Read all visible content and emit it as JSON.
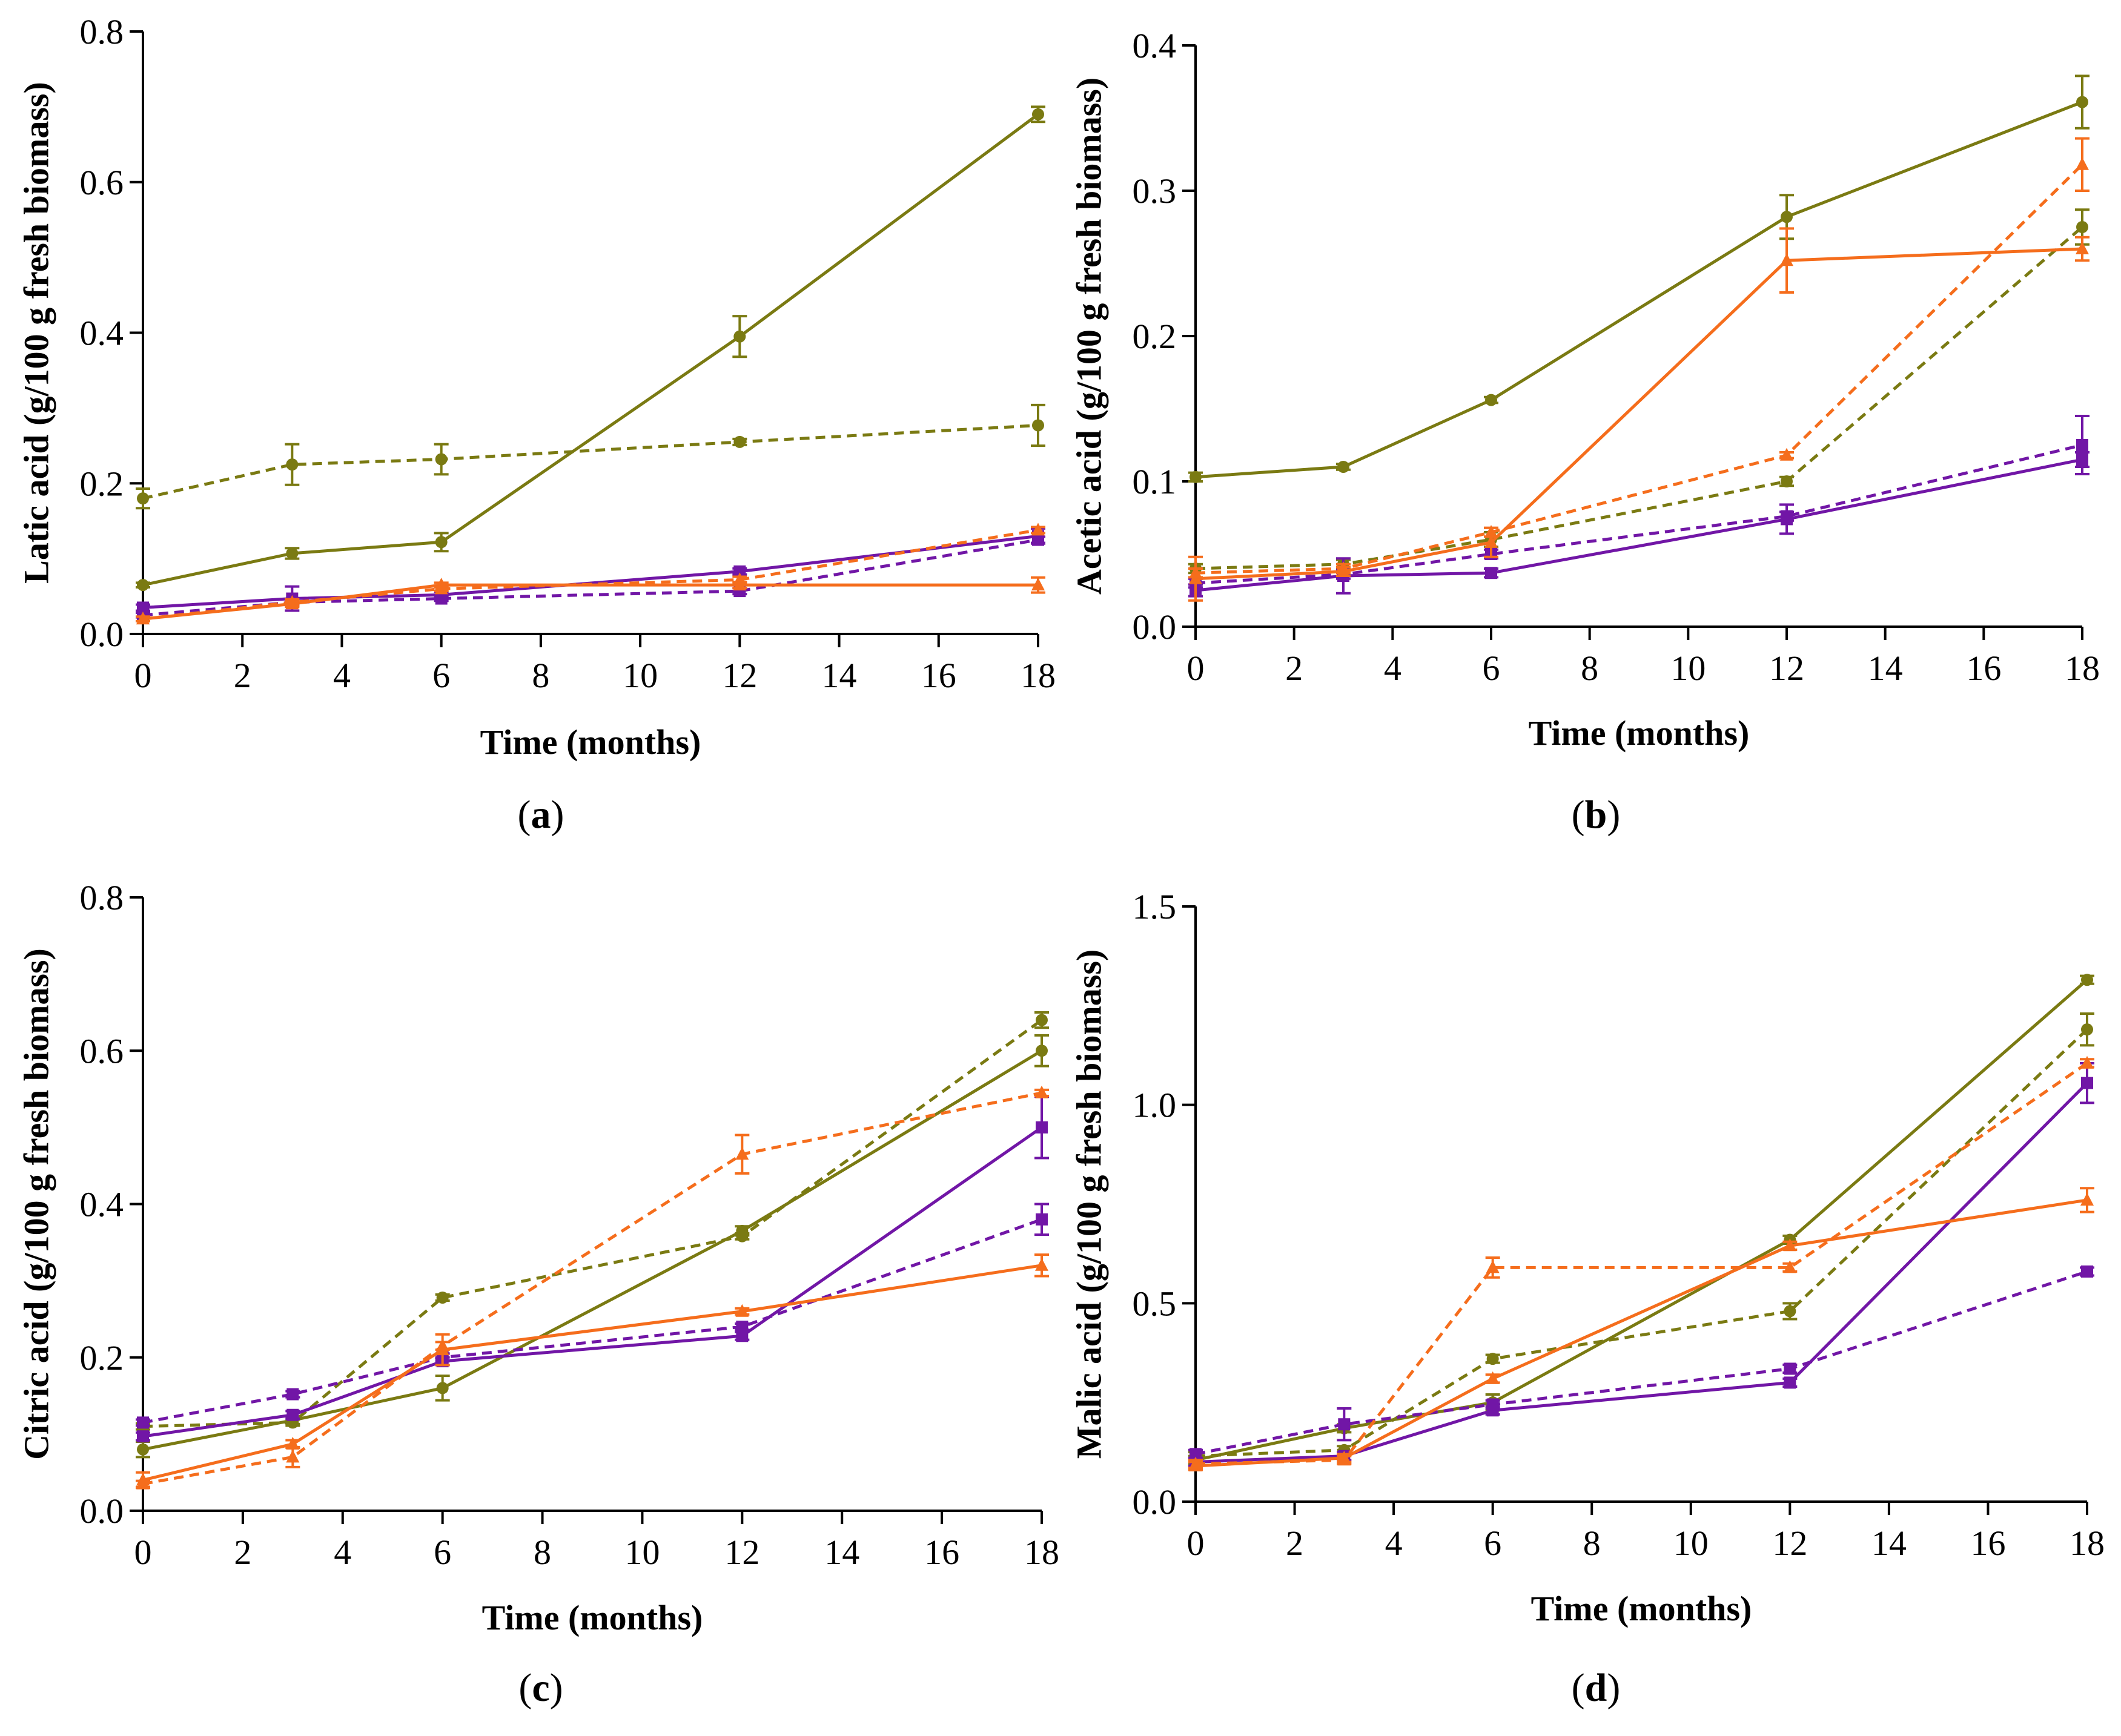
{
  "colors": {
    "olive": "#7a7a12",
    "orange": "#f56d1c",
    "purple": "#7116a6",
    "axis": "#000000"
  },
  "chart_data": [
    {
      "type": "line",
      "panel": "a",
      "panel_label_text": "(a)",
      "xlabel": "Time (months)",
      "ylabel": "Latic acid (g/100 g fresh biomass)",
      "x": [
        0,
        3,
        6,
        12,
        18
      ],
      "xlim": [
        0,
        18
      ],
      "ylim": [
        0,
        0.8
      ],
      "xticks": [
        0,
        2,
        4,
        6,
        8,
        10,
        12,
        14,
        16,
        18
      ],
      "yticks": [
        0.0,
        0.2,
        0.4,
        0.6,
        0.8
      ],
      "ytick_labels": [
        "0.0",
        "0.2",
        "0.4",
        "0.6",
        "0.8"
      ],
      "series": [
        {
          "id": "olive-solid",
          "color": "olive",
          "dash": false,
          "marker": "circle",
          "values": [
            0.065,
            0.107,
            0.122,
            0.395,
            0.69
          ],
          "errors": [
            0.003,
            0.007,
            0.012,
            0.027,
            0.01
          ]
        },
        {
          "id": "olive-dashed",
          "color": "olive",
          "dash": true,
          "marker": "circle",
          "values": [
            0.18,
            0.225,
            0.232,
            0.255,
            0.277
          ],
          "errors": [
            0.013,
            0.027,
            0.02,
            0.004,
            0.027
          ]
        },
        {
          "id": "purple-solid",
          "color": "purple",
          "dash": false,
          "marker": "square",
          "values": [
            0.035,
            0.047,
            0.052,
            0.083,
            0.13
          ],
          "errors": [
            0.004,
            0.016,
            0.004,
            0.004,
            0.01
          ]
        },
        {
          "id": "purple-dashed",
          "color": "purple",
          "dash": true,
          "marker": "square",
          "values": [
            0.025,
            0.042,
            0.047,
            0.057,
            0.125
          ],
          "errors": [
            0.003,
            0.004,
            0.003,
            0.004,
            0.004
          ]
        },
        {
          "id": "orange-solid",
          "color": "orange",
          "dash": false,
          "marker": "triangle",
          "values": [
            0.02,
            0.04,
            0.065,
            0.065,
            0.065
          ],
          "errors": [
            0.003,
            0.004,
            0.003,
            0.004,
            0.01
          ]
        },
        {
          "id": "orange-dashed",
          "color": "orange",
          "dash": true,
          "marker": "triangle",
          "values": [
            0.02,
            0.042,
            0.06,
            0.072,
            0.138
          ],
          "errors": [
            0.003,
            0.004,
            0.003,
            0.004,
            0.004
          ]
        }
      ]
    },
    {
      "type": "line",
      "panel": "b",
      "panel_label_text": "(b)",
      "xlabel": "Time (months)",
      "ylabel": "Acetic acid (g/100 g fresh biomass)",
      "x": [
        0,
        3,
        6,
        12,
        18
      ],
      "xlim": [
        0,
        18
      ],
      "ylim": [
        0,
        0.4
      ],
      "xticks": [
        0,
        2,
        4,
        6,
        8,
        10,
        12,
        14,
        16,
        18
      ],
      "yticks": [
        0.0,
        0.1,
        0.2,
        0.3,
        0.4
      ],
      "ytick_labels": [
        "0.0",
        "0.1",
        "0.2",
        "0.3",
        "0.4"
      ],
      "series": [
        {
          "id": "olive-solid",
          "color": "olive",
          "dash": false,
          "marker": "circle",
          "values": [
            0.103,
            0.11,
            0.156,
            0.282,
            0.361
          ],
          "errors": [
            0.003,
            0.002,
            0.002,
            0.015,
            0.018
          ]
        },
        {
          "id": "olive-dashed",
          "color": "olive",
          "dash": true,
          "marker": "circle",
          "values": [
            0.04,
            0.043,
            0.06,
            0.1,
            0.275
          ],
          "errors": [
            0.003,
            0.003,
            0.005,
            0.003,
            0.012
          ]
        },
        {
          "id": "purple-solid",
          "color": "purple",
          "dash": false,
          "marker": "square",
          "values": [
            0.025,
            0.035,
            0.037,
            0.074,
            0.115
          ],
          "errors": [
            0.004,
            0.012,
            0.003,
            0.01,
            0.005
          ]
        },
        {
          "id": "purple-dashed",
          "color": "purple",
          "dash": true,
          "marker": "square",
          "values": [
            0.03,
            0.036,
            0.05,
            0.076,
            0.125
          ],
          "errors": [
            0.003,
            0.003,
            0.003,
            0.003,
            0.02
          ]
        },
        {
          "id": "orange-solid",
          "color": "orange",
          "dash": false,
          "marker": "triangle",
          "values": [
            0.033,
            0.038,
            0.058,
            0.252,
            0.26
          ],
          "errors": [
            0.015,
            0.003,
            0.01,
            0.022,
            0.008
          ]
        },
        {
          "id": "orange-dashed",
          "color": "orange",
          "dash": true,
          "marker": "triangle",
          "values": [
            0.037,
            0.04,
            0.065,
            0.118,
            0.318
          ],
          "errors": [
            0.003,
            0.003,
            0.003,
            0.002,
            0.018
          ]
        }
      ]
    },
    {
      "type": "line",
      "panel": "c",
      "panel_label_text": "(c)",
      "xlabel": "Time (months)",
      "ylabel": "Citric acid (g/100 g fresh biomass)",
      "x": [
        0,
        3,
        6,
        12,
        18
      ],
      "xlim": [
        0,
        18
      ],
      "ylim": [
        0,
        0.8
      ],
      "xticks": [
        0,
        2,
        4,
        6,
        8,
        10,
        12,
        14,
        16,
        18
      ],
      "yticks": [
        0.0,
        0.2,
        0.4,
        0.6,
        0.8
      ],
      "ytick_labels": [
        "0.0",
        "0.2",
        "0.4",
        "0.6",
        "0.8"
      ],
      "series": [
        {
          "id": "olive-solid",
          "color": "olive",
          "dash": false,
          "marker": "circle",
          "values": [
            0.08,
            0.118,
            0.16,
            0.365,
            0.6
          ],
          "errors": [
            0.01,
            0.005,
            0.016,
            0.006,
            0.02
          ]
        },
        {
          "id": "olive-dashed",
          "color": "olive",
          "dash": true,
          "marker": "circle",
          "values": [
            0.11,
            0.115,
            0.278,
            0.358,
            0.64
          ],
          "errors": [
            0.004,
            0.004,
            0.004,
            0.004,
            0.01
          ]
        },
        {
          "id": "purple-solid",
          "color": "purple",
          "dash": false,
          "marker": "square",
          "values": [
            0.097,
            0.125,
            0.195,
            0.228,
            0.5
          ],
          "errors": [
            0.005,
            0.005,
            0.005,
            0.005,
            0.04
          ]
        },
        {
          "id": "purple-dashed",
          "color": "purple",
          "dash": true,
          "marker": "square",
          "values": [
            0.115,
            0.152,
            0.2,
            0.24,
            0.38
          ],
          "errors": [
            0.004,
            0.004,
            0.005,
            0.004,
            0.02
          ]
        },
        {
          "id": "orange-solid",
          "color": "orange",
          "dash": false,
          "marker": "triangle",
          "values": [
            0.04,
            0.087,
            0.21,
            0.26,
            0.32
          ],
          "errors": [
            0.01,
            0.005,
            0.02,
            0.004,
            0.014
          ]
        },
        {
          "id": "orange-dashed",
          "color": "orange",
          "dash": true,
          "marker": "triangle",
          "values": [
            0.035,
            0.07,
            0.215,
            0.465,
            0.545
          ],
          "errors": [
            0.004,
            0.013,
            0.005,
            0.025,
            0.004
          ]
        }
      ]
    },
    {
      "type": "line",
      "panel": "d",
      "panel_label_text": "(d)",
      "xlabel": "Time (months)",
      "ylabel": "Malic acid (g/100 g fresh biomass)",
      "x": [
        0,
        3,
        6,
        12,
        18
      ],
      "xlim": [
        0,
        18
      ],
      "ylim": [
        0,
        1.5
      ],
      "xticks": [
        0,
        2,
        4,
        6,
        8,
        10,
        12,
        14,
        16,
        18
      ],
      "yticks": [
        0.0,
        0.5,
        1.0,
        1.5
      ],
      "ytick_labels": [
        "0.0",
        "0.5",
        "1.0",
        "1.5"
      ],
      "series": [
        {
          "id": "olive-solid",
          "color": "olive",
          "dash": false,
          "marker": "circle",
          "values": [
            0.105,
            0.185,
            0.25,
            0.66,
            1.315
          ],
          "errors": [
            0.01,
            0.01,
            0.02,
            0.01,
            0.01
          ]
        },
        {
          "id": "olive-dashed",
          "color": "olive",
          "dash": true,
          "marker": "circle",
          "values": [
            0.115,
            0.13,
            0.36,
            0.48,
            1.19
          ],
          "errors": [
            0.01,
            0.01,
            0.01,
            0.02,
            0.04
          ]
        },
        {
          "id": "purple-solid",
          "color": "purple",
          "dash": false,
          "marker": "square",
          "values": [
            0.1,
            0.115,
            0.23,
            0.3,
            1.055
          ],
          "errors": [
            0.01,
            0.01,
            0.01,
            0.01,
            0.05
          ]
        },
        {
          "id": "purple-dashed",
          "color": "purple",
          "dash": true,
          "marker": "square",
          "values": [
            0.12,
            0.195,
            0.245,
            0.335,
            0.58
          ],
          "errors": [
            0.01,
            0.04,
            0.01,
            0.01,
            0.01
          ]
        },
        {
          "id": "orange-solid",
          "color": "orange",
          "dash": false,
          "marker": "triangle",
          "values": [
            0.09,
            0.11,
            0.31,
            0.645,
            0.76
          ],
          "errors": [
            0.01,
            0.01,
            0.01,
            0.01,
            0.03
          ]
        },
        {
          "id": "orange-dashed",
          "color": "orange",
          "dash": true,
          "marker": "triangle",
          "values": [
            0.095,
            0.105,
            0.59,
            0.59,
            1.105
          ],
          "errors": [
            0.01,
            0.01,
            0.025,
            0.01,
            0.01
          ]
        }
      ]
    }
  ]
}
